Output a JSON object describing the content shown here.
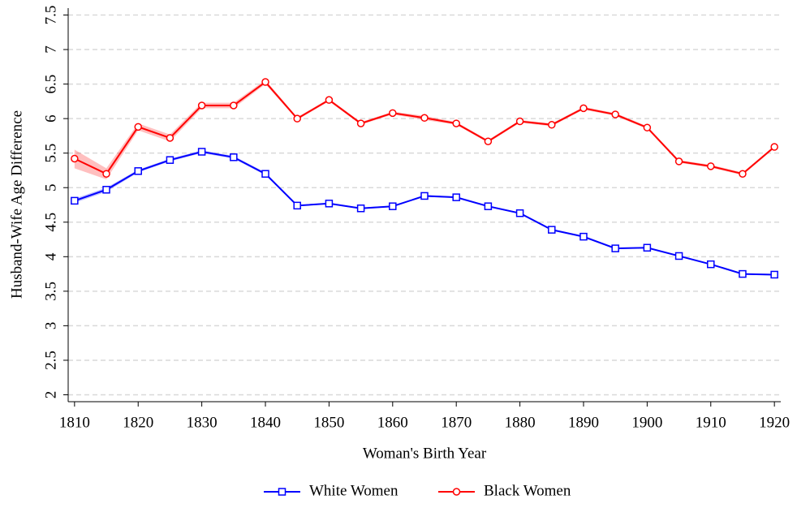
{
  "chart_data": {
    "type": "line",
    "x_label": "Woman's Birth Year",
    "y_label": "Husband-Wife Age Difference",
    "x": [
      1810,
      1815,
      1820,
      1825,
      1830,
      1835,
      1840,
      1845,
      1850,
      1855,
      1860,
      1865,
      1870,
      1875,
      1880,
      1885,
      1890,
      1895,
      1900,
      1905,
      1910,
      1915,
      1920
    ],
    "series": [
      {
        "name": "White Women",
        "color": "#0000ff",
        "marker": "square",
        "values": [
          4.81,
          4.97,
          5.24,
          5.4,
          5.52,
          5.44,
          5.2,
          4.74,
          4.77,
          4.7,
          4.73,
          4.88,
          4.86,
          4.73,
          4.63,
          4.39,
          4.29,
          4.12,
          4.13,
          4.01,
          3.89,
          3.75,
          3.74
        ],
        "lower": [
          4.78,
          4.94,
          5.22,
          5.38,
          5.5,
          5.42,
          5.18,
          4.73,
          4.76,
          4.69,
          4.72,
          4.87,
          4.85,
          4.72,
          4.62,
          4.38,
          4.28,
          4.11,
          4.12,
          4.0,
          3.88,
          3.74,
          3.73
        ],
        "upper": [
          4.84,
          5.0,
          5.26,
          5.42,
          5.54,
          5.46,
          5.22,
          4.75,
          4.78,
          4.71,
          4.74,
          4.89,
          4.87,
          4.74,
          4.64,
          4.4,
          4.3,
          4.13,
          4.14,
          4.02,
          3.9,
          3.76,
          3.75
        ]
      },
      {
        "name": "Black Women",
        "color": "#ff0000",
        "marker": "circle",
        "values": [
          5.42,
          5.2,
          5.88,
          5.72,
          6.19,
          6.19,
          6.53,
          6.0,
          6.27,
          5.93,
          6.08,
          6.01,
          5.93,
          5.67,
          5.96,
          5.91,
          6.15,
          6.06,
          5.87,
          5.38,
          5.31,
          5.2,
          5.59
        ],
        "lower": [
          5.28,
          5.12,
          5.83,
          5.67,
          6.15,
          6.15,
          6.5,
          5.98,
          6.25,
          5.91,
          6.06,
          5.98,
          5.91,
          5.65,
          5.94,
          5.89,
          6.13,
          6.04,
          5.85,
          5.36,
          5.29,
          5.18,
          5.57
        ],
        "upper": [
          5.55,
          5.28,
          5.93,
          5.77,
          6.23,
          6.23,
          6.56,
          6.02,
          6.29,
          5.95,
          6.1,
          6.04,
          5.95,
          5.69,
          5.98,
          5.93,
          6.17,
          6.08,
          5.89,
          5.4,
          5.33,
          5.22,
          5.61
        ]
      }
    ],
    "xlim": [
      1809,
      1921
    ],
    "xticks": [
      1810,
      1820,
      1830,
      1840,
      1850,
      1860,
      1870,
      1880,
      1890,
      1900,
      1910,
      1920
    ],
    "ylim": [
      1.9,
      7.6
    ],
    "yticks": [
      2,
      2.5,
      3,
      3.5,
      4,
      4.5,
      5,
      5.5,
      6,
      6.5,
      7,
      7.5
    ],
    "grid": true,
    "legend": "bottom"
  }
}
